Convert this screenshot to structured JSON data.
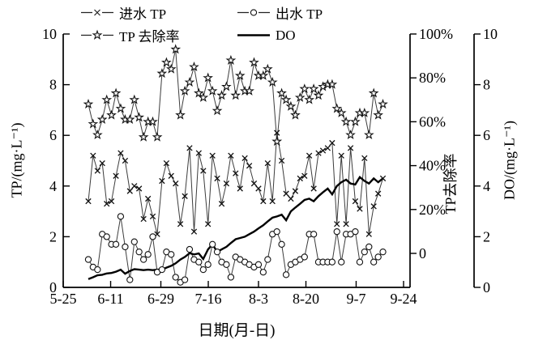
{
  "figure": {
    "x_axis_label": "日期(月-日)",
    "y_left_label": "TP/(mg·L⁻¹)",
    "y_right_pct_label": "TP去除率",
    "y_right_do_label": "DO/(mg·L⁻¹)"
  },
  "legend": {
    "items": [
      {
        "label": "进水 TP",
        "marker": "x"
      },
      {
        "label": "出水 TP",
        "marker": "circle"
      },
      {
        "label": "TP 去除率",
        "marker": "star"
      },
      {
        "label": "DO",
        "marker": "solid-line"
      }
    ]
  },
  "chart_data": {
    "type": "line",
    "title": "",
    "xlabel": "日期(月-日)",
    "x_axis": {
      "tick_labels": [
        "5-25",
        "6-11",
        "6-29",
        "7-16",
        "8-3",
        "8-20",
        "9-7",
        "9-24"
      ],
      "tick_days": [
        0,
        17,
        35,
        52,
        70,
        87,
        105,
        122
      ],
      "range_days": [
        0,
        122
      ]
    },
    "y_left": {
      "label": "TP/(mg·L⁻¹)",
      "ticks": [
        0,
        2,
        4,
        6,
        8,
        10
      ],
      "range": [
        0,
        10
      ]
    },
    "y_right_pct": {
      "label": "TP去除率",
      "tick_labels": [
        "0",
        "20%",
        "40%",
        "60%",
        "80%",
        "100%"
      ],
      "tick_values": [
        0,
        20,
        40,
        60,
        80,
        100
      ]
    },
    "y_right_do": {
      "label": "DO/(mg·L⁻¹)",
      "ticks": [
        0,
        2,
        4,
        6,
        8,
        10
      ],
      "range": [
        0,
        10
      ]
    },
    "grid": false,
    "legend_position": "top",
    "x_days": [
      9,
      10.7,
      12.3,
      14,
      15.6,
      17.3,
      18.9,
      20.6,
      22.2,
      23.9,
      25.5,
      27.2,
      28.8,
      30.4,
      32.1,
      33.7,
      35.4,
      37,
      38.7,
      40.3,
      42,
      43.6,
      45.3,
      46.9,
      48.6,
      50.2,
      51.9,
      53.5,
      55.2,
      56.8,
      58.5,
      60.1,
      61.8,
      63.4,
      65.1,
      66.7,
      68.4,
      70,
      71.7,
      73.3,
      75,
      76.6,
      78.3,
      79.9,
      81.6,
      83.2,
      84.9,
      86.5,
      88.2,
      89.8,
      91.5,
      93.1,
      94.8,
      96.4,
      98.1,
      99.7,
      101.4,
      103,
      104.7,
      106.3,
      108,
      109.6,
      111.3,
      112.9,
      114.6
    ],
    "series": [
      {
        "name": "进水 TP",
        "marker": "x",
        "axis": "tp",
        "unit": "mg/L",
        "values": [
          3.4,
          5.2,
          4.6,
          4.9,
          3.3,
          3.4,
          4.4,
          5.3,
          5.0,
          3.8,
          4.0,
          3.9,
          2.7,
          3.5,
          2.8,
          2.1,
          4.2,
          4.9,
          4.4,
          4.1,
          2.5,
          3.6,
          5.5,
          2.2,
          5.3,
          4.6,
          2.5,
          5.2,
          4.3,
          3.3,
          4.1,
          5.2,
          4.5,
          3.9,
          5.1,
          4.8,
          4.1,
          3.9,
          3.4,
          4.9,
          3.4,
          6.1,
          5.0,
          3.7,
          3.5,
          3.8,
          4.3,
          4.4,
          5.2,
          3.9,
          5.3,
          5.4,
          5.5,
          5.7,
          2.5,
          5.2,
          2.5,
          5.5,
          3.4,
          3.1,
          5.1,
          2.1,
          3.2,
          3.7,
          4.3
        ]
      },
      {
        "name": "出水 TP",
        "marker": "circle",
        "axis": "tp",
        "unit": "mg/L",
        "values": [
          1.1,
          0.8,
          0.7,
          2.1,
          2.0,
          1.7,
          1.7,
          2.8,
          1.6,
          0.3,
          1.8,
          1.4,
          1.1,
          1.3,
          2.0,
          0.6,
          0.7,
          1.4,
          1.3,
          0.4,
          0.2,
          0.3,
          1.5,
          1.1,
          1.0,
          0.7,
          0.9,
          1.7,
          1.4,
          1.0,
          0.9,
          0.4,
          1.2,
          1.1,
          1.0,
          0.9,
          0.8,
          0.9,
          0.6,
          1.1,
          2.1,
          2.2,
          1.7,
          0.5,
          0.9,
          1.0,
          1.1,
          1.2,
          2.1,
          2.1,
          1.0,
          1.0,
          1.0,
          1.0,
          2.2,
          1.0,
          2.1,
          2.1,
          2.2,
          1.0,
          1.4,
          1.6,
          1.0,
          1.2,
          1.4
        ]
      },
      {
        "name": "TP 去除率",
        "marker": "star",
        "axis": "pct",
        "unit": "%",
        "values": [
          68,
          59,
          54,
          61,
          70,
          63,
          73,
          66,
          61,
          61,
          70,
          62,
          53,
          60,
          60,
          53,
          82,
          87,
          84,
          93,
          63,
          74,
          78,
          85,
          73,
          71,
          80,
          74,
          65,
          72,
          76,
          88,
          72,
          81,
          74,
          74,
          87,
          81,
          81,
          84,
          78,
          51,
          73,
          70,
          67,
          63,
          71,
          75,
          70,
          75,
          72,
          76,
          77,
          77,
          66,
          64,
          60,
          54,
          60,
          64,
          64,
          54,
          73,
          63,
          68
        ]
      },
      {
        "name": "DO",
        "marker": "none",
        "axis": "do",
        "unit": "mg/L",
        "values": [
          0.33,
          0.4,
          0.48,
          0.5,
          0.55,
          0.57,
          0.62,
          0.7,
          0.54,
          0.65,
          0.72,
          0.7,
          0.68,
          0.7,
          0.68,
          0.7,
          0.7,
          0.78,
          0.85,
          0.95,
          1.1,
          1.2,
          1.35,
          1.3,
          1.34,
          1.12,
          1.5,
          1.7,
          1.4,
          1.5,
          1.6,
          1.75,
          1.9,
          1.95,
          2.0,
          2.1,
          2.2,
          2.33,
          2.45,
          2.6,
          2.75,
          2.8,
          2.87,
          2.65,
          3.0,
          3.15,
          3.3,
          3.45,
          3.5,
          3.4,
          3.6,
          3.75,
          3.9,
          3.67,
          4.0,
          4.15,
          4.25,
          4.1,
          4.06,
          4.35,
          4.2,
          4.1,
          4.3,
          4.15,
          4.3
        ]
      }
    ]
  }
}
